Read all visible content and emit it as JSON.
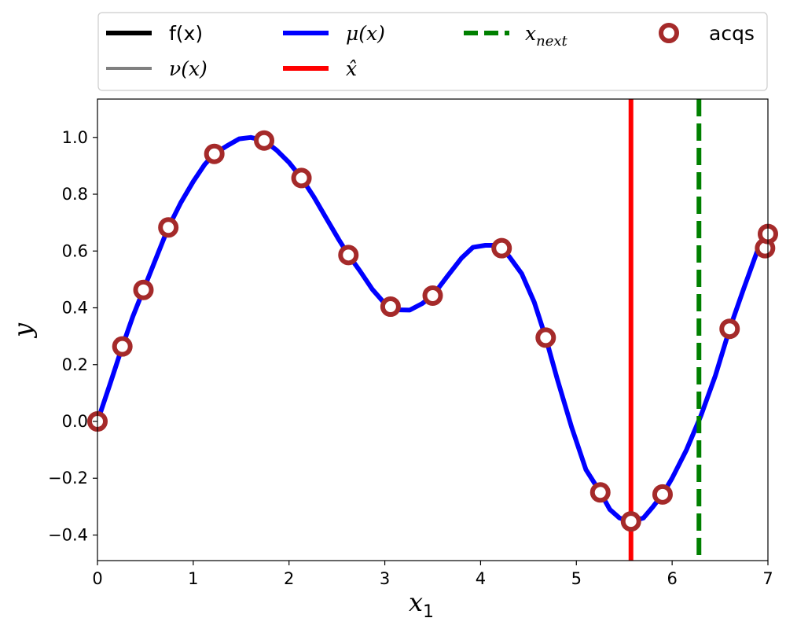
{
  "chart_data": {
    "type": "line",
    "xlabel": "x",
    "xlabel_sub": "1",
    "ylabel": "y",
    "xlim": [
      0,
      7
    ],
    "ylim": [
      -0.49,
      1.135
    ],
    "xticks": [
      0,
      1,
      2,
      3,
      4,
      5,
      6,
      7
    ],
    "yticks": [
      -0.4,
      -0.2,
      0.0,
      0.2,
      0.4,
      0.6,
      0.8,
      1.0
    ],
    "grid": false,
    "legend_placement": "above plot",
    "legend": [
      {
        "key": "f",
        "label": "f(x)",
        "color": "#000000",
        "style": "solid"
      },
      {
        "key": "mu",
        "label": "μ(x)",
        "color": "#0000ff",
        "style": "solid"
      },
      {
        "key": "xnext",
        "label": "x",
        "label_sub": "next",
        "color": "#008000",
        "style": "dashed"
      },
      {
        "key": "acqs",
        "label": "acqs",
        "color": "#a52a2a",
        "style": "marker"
      },
      {
        "key": "nu",
        "label": "ν(x)",
        "color": "#808080",
        "style": "solid"
      },
      {
        "key": "xhat",
        "label": "x̂",
        "color": "#ff0000",
        "style": "solid"
      }
    ],
    "series": [
      {
        "name": "μ(x)",
        "color": "#0000ff",
        "x": [
          0,
          0.13,
          0.26,
          0.37,
          0.48,
          0.61,
          0.74,
          0.87,
          1.0,
          1.12,
          1.22,
          1.35,
          1.48,
          1.6,
          1.74,
          1.87,
          2.0,
          2.13,
          2.26,
          2.39,
          2.52,
          2.62,
          2.74,
          2.87,
          3.0,
          3.06,
          3.13,
          3.26,
          3.39,
          3.5,
          3.65,
          3.8,
          3.92,
          4.05,
          4.15,
          4.22,
          4.3,
          4.43,
          4.56,
          4.68,
          4.8,
          4.95,
          5.1,
          5.25,
          5.35,
          5.45,
          5.57,
          5.7,
          5.8,
          5.9,
          6.0,
          6.15,
          6.3,
          6.45,
          6.6,
          6.75,
          6.9,
          7.0
        ],
        "y": [
          0.0,
          0.13,
          0.264,
          0.37,
          0.463,
          0.573,
          0.683,
          0.77,
          0.845,
          0.905,
          0.942,
          0.97,
          0.995,
          1.0,
          0.989,
          0.955,
          0.912,
          0.857,
          0.79,
          0.715,
          0.64,
          0.586,
          0.53,
          0.465,
          0.415,
          0.404,
          0.393,
          0.392,
          0.415,
          0.443,
          0.51,
          0.575,
          0.613,
          0.62,
          0.62,
          0.61,
          0.58,
          0.52,
          0.42,
          0.295,
          0.15,
          -0.02,
          -0.17,
          -0.25,
          -0.31,
          -0.34,
          -0.352,
          -0.34,
          -0.3,
          -0.257,
          -0.2,
          -0.1,
          0.02,
          0.16,
          0.326,
          0.47,
          0.61,
          0.66
        ]
      }
    ],
    "acquisitions": {
      "name": "acqs",
      "x": [
        0.0,
        0.26,
        0.48,
        0.74,
        1.22,
        1.74,
        2.13,
        2.62,
        3.06,
        3.5,
        4.22,
        4.68,
        5.25,
        5.57,
        5.9,
        6.6,
        6.97,
        7.0
      ],
      "y": [
        0.0,
        0.264,
        0.463,
        0.683,
        0.942,
        0.989,
        0.857,
        0.586,
        0.404,
        0.443,
        0.61,
        0.295,
        -0.25,
        -0.352,
        -0.257,
        0.326,
        0.61,
        0.66
      ]
    },
    "vlines": [
      {
        "name": "x̂",
        "x": 5.57,
        "color": "#ff0000",
        "style": "solid"
      },
      {
        "name": "x_next",
        "x": 6.28,
        "color": "#008000",
        "style": "dashed"
      }
    ]
  }
}
